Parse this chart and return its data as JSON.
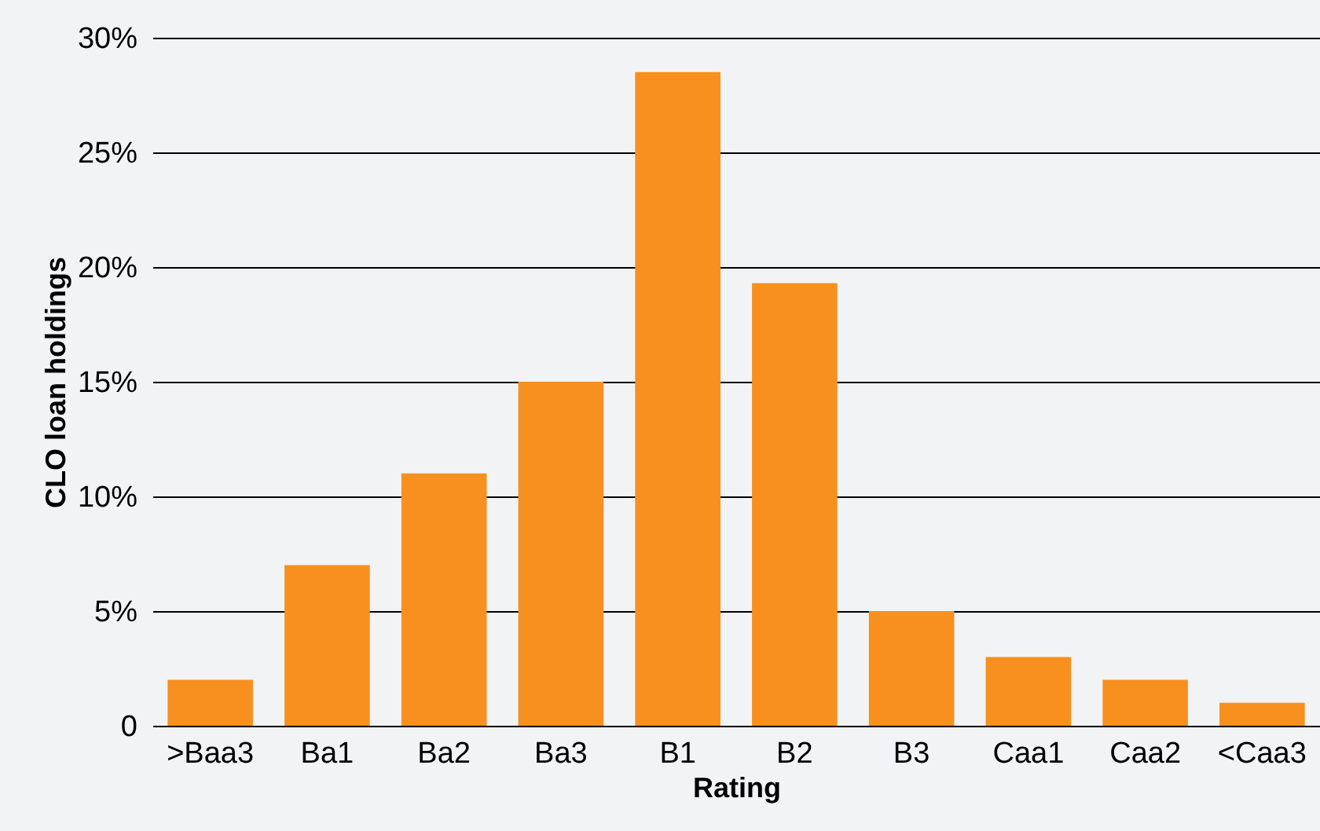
{
  "chart_data": {
    "type": "bar",
    "xlabel": "Rating",
    "ylabel": "CLO loan holdings",
    "categories": [
      ">Baa3",
      "Ba1",
      "Ba2",
      "Ba3",
      "B1",
      "B2",
      "B3",
      "Caa1",
      "Caa2",
      "<Caa3"
    ],
    "values": [
      2,
      7,
      11,
      15,
      28.5,
      19.3,
      5,
      3,
      2,
      1
    ],
    "color": "#f7901e",
    "ylim": [
      0,
      30
    ],
    "yticks": [
      {
        "value": 0,
        "label": "0"
      },
      {
        "value": 5,
        "label": "5%"
      },
      {
        "value": 10,
        "label": "10%"
      },
      {
        "value": 15,
        "label": "15%"
      },
      {
        "value": 20,
        "label": "20%"
      },
      {
        "value": 25,
        "label": "25%"
      },
      {
        "value": 30,
        "label": "30%"
      }
    ],
    "grid": "y"
  }
}
